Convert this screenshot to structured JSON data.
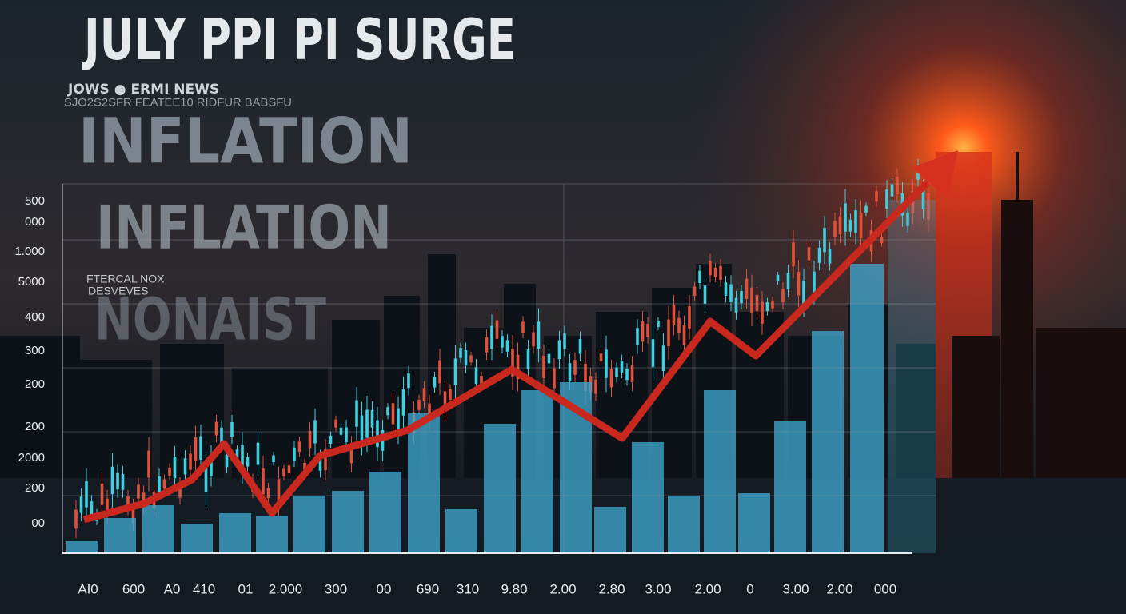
{
  "header": {
    "title": "JULY PPI PI SURGE",
    "source": "JOWS ● ERMI NEWS",
    "ticker": "SJO2S2SFR FEATEE10 RIDFUR BABSFU"
  },
  "headings": [
    "INFLATION",
    "INFLATION",
    "NONAIST"
  ],
  "side_note": [
    "FTERCAL NOX",
    "DESVEVES"
  ],
  "y_labels": [
    "500",
    "000",
    "1.000",
    "5000",
    "400",
    "300",
    "200",
    "200",
    "2000",
    "200",
    "00"
  ],
  "x_labels": [
    "AI0",
    "600",
    "A0",
    "410",
    "01",
    "2.000",
    "300",
    "00",
    "690",
    "310",
    "9.80",
    "2.00",
    "2.80",
    "3.00",
    "2.00",
    "0",
    "3.00",
    "2.00",
    "000"
  ]
}
